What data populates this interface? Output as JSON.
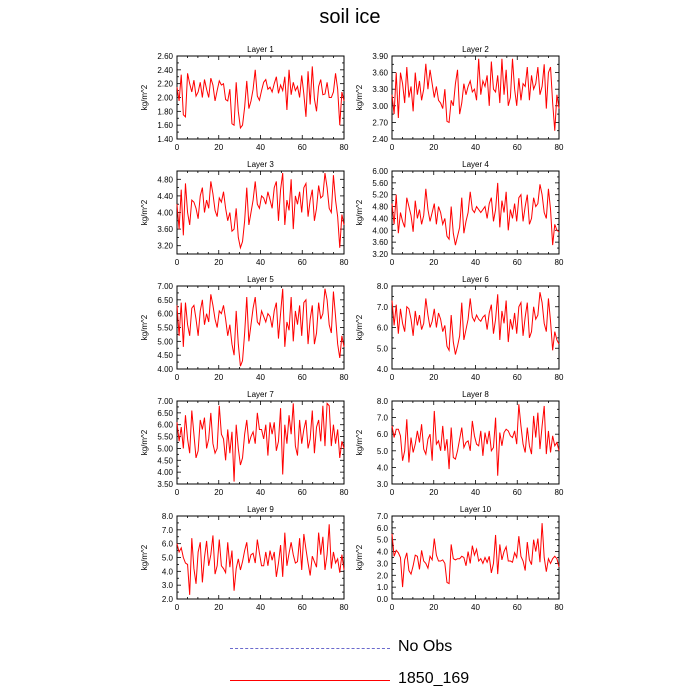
{
  "title": "soil ice",
  "legend": [
    {
      "label": "No Obs",
      "style": "dashed",
      "color": "#6a6acd"
    },
    {
      "label": "1850_169",
      "style": "solid",
      "color": "#ff0000"
    }
  ],
  "series_color": "#ff0000",
  "chart_data": [
    {
      "type": "line",
      "title": "Layer 1",
      "ylabel": "kg/m^2",
      "xlim": [
        0,
        80
      ],
      "xticks": [
        0,
        20,
        40,
        60,
        80
      ],
      "ylim": [
        1.4,
        2.6
      ],
      "yticks": [
        "1.40",
        "1.60",
        "1.80",
        "2.00",
        "2.20",
        "2.40",
        "2.60"
      ],
      "values": [
        2.15,
        1.95,
        2.33,
        1.75,
        1.72,
        2.35,
        2.2,
        2.08,
        2.25,
        2.02,
        2.08,
        2.22,
        2.0,
        2.26,
        2.12,
        2.0,
        2.28,
        2.18,
        1.95,
        2.1,
        2.24,
        2.18,
        2.2,
        1.97,
        1.95,
        2.12,
        1.62,
        1.6,
        2.22,
        1.8,
        1.56,
        1.6,
        1.86,
        2.24,
        1.84,
        1.95,
        2.12,
        2.4,
        2.02,
        1.96,
        2.1,
        2.22,
        2.26,
        2.12,
        2.15,
        2.08,
        2.2,
        2.3,
        2.06,
        2.18,
        2.1,
        2.3,
        1.82,
        2.4,
        2.04,
        2.22,
        2.1,
        2.16,
        2.0,
        2.32,
        2.05,
        1.72,
        2.38,
        1.9,
        2.45,
        1.98,
        1.8,
        2.16,
        2.26,
        2.04,
        2.05,
        2.22,
        2.0,
        2.0,
        2.08,
        2.35,
        2.12,
        1.6,
        2.08,
        1.95
      ]
    },
    {
      "type": "line",
      "title": "Layer 2",
      "ylabel": "kg/m^2",
      "xlim": [
        0,
        80
      ],
      "xticks": [
        0,
        20,
        40,
        60,
        80
      ],
      "ylim": [
        2.4,
        3.9
      ],
      "yticks": [
        "2.40",
        "2.70",
        "3.00",
        "3.30",
        "3.60",
        "3.90"
      ],
      "values": [
        3.2,
        2.85,
        3.6,
        2.78,
        3.6,
        3.4,
        3.05,
        3.7,
        3.15,
        3.35,
        2.9,
        3.6,
        3.2,
        3.45,
        3.1,
        3.3,
        3.76,
        3.3,
        3.65,
        3.4,
        3.15,
        3.35,
        3.1,
        3.05,
        2.95,
        3.3,
        2.72,
        2.7,
        3.1,
        3.0,
        3.4,
        3.65,
        2.85,
        3.05,
        3.4,
        3.2,
        3.35,
        3.45,
        3.25,
        3.3,
        3.1,
        3.85,
        3.2,
        3.45,
        3.35,
        3.55,
        3.0,
        3.8,
        3.3,
        3.25,
        3.55,
        3.05,
        3.85,
        3.2,
        3.65,
        3.0,
        3.15,
        3.85,
        3.3,
        3.0,
        3.5,
        3.1,
        3.4,
        3.35,
        3.7,
        3.1,
        3.55,
        3.3,
        3.4,
        3.7,
        3.2,
        3.35,
        3.75,
        2.95,
        3.6,
        3.7,
        3.05,
        2.55,
        3.2,
        2.95
      ]
    },
    {
      "type": "line",
      "title": "Layer 3",
      "ylabel": "kg/m^2",
      "xlim": [
        0,
        80
      ],
      "xticks": [
        0,
        20,
        40,
        60,
        80
      ],
      "ylim": [
        3.0,
        5.0
      ],
      "yticks": [
        "3.20",
        "3.60",
        "4.00",
        "4.40",
        "4.80"
      ],
      "values": [
        4.2,
        3.6,
        4.55,
        3.45,
        4.7,
        4.0,
        3.7,
        4.3,
        4.25,
        4.1,
        3.85,
        4.4,
        4.6,
        4.0,
        4.3,
        4.1,
        4.75,
        4.45,
        4.05,
        3.9,
        4.35,
        4.25,
        4.5,
        4.1,
        3.8,
        4.0,
        3.55,
        3.6,
        4.1,
        3.4,
        3.15,
        3.3,
        3.8,
        4.6,
        3.7,
        4.0,
        4.3,
        4.75,
        4.2,
        4.1,
        4.4,
        4.35,
        4.2,
        4.5,
        4.3,
        4.1,
        4.6,
        4.75,
        3.8,
        4.55,
        4.95,
        3.7,
        4.3,
        4.05,
        4.8,
        3.6,
        4.4,
        4.2,
        4.5,
        4.0,
        4.6,
        4.7,
        3.9,
        4.3,
        4.55,
        3.8,
        4.1,
        4.65,
        4.35,
        4.4,
        4.95,
        4.6,
        4.1,
        4.0,
        4.9,
        4.3,
        3.9,
        3.15,
        3.95,
        3.7
      ]
    },
    {
      "type": "line",
      "title": "Layer 4",
      "ylabel": "kg/m^2",
      "xlim": [
        0,
        80
      ],
      "xticks": [
        0,
        20,
        40,
        60,
        80
      ],
      "ylim": [
        3.2,
        6.0
      ],
      "yticks": [
        "3.20",
        "3.60",
        "4.00",
        "4.40",
        "4.80",
        "5.20",
        "5.60",
        "6.00"
      ],
      "values": [
        4.9,
        4.2,
        5.2,
        3.9,
        4.6,
        4.3,
        4.1,
        5.1,
        4.8,
        4.5,
        3.95,
        5.0,
        4.4,
        4.7,
        4.2,
        4.5,
        5.4,
        4.7,
        4.3,
        4.6,
        4.9,
        4.2,
        4.8,
        4.6,
        4.2,
        4.4,
        3.8,
        3.7,
        4.8,
        3.9,
        3.5,
        3.8,
        4.1,
        5.1,
        3.9,
        4.3,
        4.6,
        5.3,
        4.7,
        4.6,
        4.8,
        4.7,
        4.6,
        4.7,
        4.8,
        4.4,
        4.9,
        5.1,
        4.3,
        4.7,
        5.6,
        4.1,
        5.0,
        4.6,
        5.3,
        4.0,
        4.7,
        4.4,
        4.9,
        4.3,
        5.1,
        5.2,
        4.3,
        4.8,
        5.2,
        4.2,
        4.4,
        5.1,
        4.8,
        4.9,
        5.55,
        5.2,
        4.6,
        4.4,
        5.4,
        4.7,
        3.5,
        4.2,
        4.0,
        3.95
      ]
    },
    {
      "type": "line",
      "title": "Layer 5",
      "ylabel": "kg/m^2",
      "xlim": [
        0,
        80
      ],
      "xticks": [
        0,
        20,
        40,
        60,
        80
      ],
      "ylim": [
        4.0,
        7.0
      ],
      "yticks": [
        "4.00",
        "4.50",
        "5.00",
        "5.50",
        "6.00",
        "6.50",
        "7.00"
      ],
      "values": [
        6.3,
        5.2,
        6.4,
        4.8,
        6.4,
        5.6,
        5.2,
        6.2,
        6.3,
        5.8,
        5.2,
        6.1,
        6.5,
        5.6,
        6.0,
        5.7,
        6.7,
        6.3,
        5.8,
        5.5,
        6.1,
        6.0,
        6.3,
        5.8,
        5.2,
        5.6,
        4.9,
        4.5,
        6.1,
        4.9,
        4.1,
        4.3,
        5.3,
        6.6,
        5.0,
        5.6,
        6.2,
        6.6,
        5.7,
        5.6,
        6.1,
        5.9,
        5.7,
        6.0,
        5.9,
        5.5,
        6.1,
        6.4,
        5.1,
        6.0,
        6.9,
        4.8,
        5.7,
        5.4,
        6.6,
        5.0,
        6.1,
        5.6,
        6.3,
        5.2,
        6.4,
        6.5,
        4.9,
        5.8,
        6.3,
        4.9,
        5.3,
        6.4,
        5.8,
        6.0,
        6.9,
        6.5,
        5.6,
        5.3,
        6.8,
        5.9,
        4.9,
        4.4,
        5.2,
        4.8
      ]
    },
    {
      "type": "line",
      "title": "Layer 6",
      "ylabel": "kg/m^2",
      "xlim": [
        0,
        80
      ],
      "xticks": [
        0,
        20,
        40,
        60,
        80
      ],
      "ylim": [
        4.0,
        8.0
      ],
      "yticks": [
        "4.0",
        "5.0",
        "6.0",
        "7.0",
        "8.0"
      ],
      "values": [
        7.3,
        6.1,
        7.1,
        5.7,
        6.9,
        6.2,
        5.8,
        7.0,
        6.9,
        6.4,
        5.6,
        6.8,
        6.1,
        6.6,
        5.9,
        6.2,
        7.4,
        6.6,
        6.0,
        6.3,
        6.9,
        6.0,
        6.7,
        6.4,
        5.8,
        6.1,
        5.1,
        4.9,
        6.6,
        5.3,
        4.7,
        5.1,
        5.6,
        7.2,
        5.4,
        5.9,
        6.4,
        7.4,
        6.5,
        6.3,
        6.6,
        6.4,
        6.3,
        6.5,
        6.6,
        5.9,
        6.7,
        7.1,
        5.7,
        6.4,
        7.6,
        5.4,
        6.8,
        6.2,
        7.3,
        5.3,
        6.4,
        5.9,
        6.7,
        5.7,
        7.0,
        7.2,
        5.6,
        6.5,
        7.2,
        5.5,
        5.8,
        7.0,
        6.4,
        6.6,
        7.7,
        7.2,
        6.2,
        5.8,
        7.4,
        6.3,
        4.9,
        5.8,
        5.4,
        5.2
      ]
    },
    {
      "type": "line",
      "title": "Layer 7",
      "ylabel": "kg/m^2",
      "xlim": [
        0,
        80
      ],
      "xticks": [
        0,
        20,
        40,
        60,
        80
      ],
      "ylim": [
        3.5,
        7.0
      ],
      "yticks": [
        "3.50",
        "4.00",
        "4.50",
        "5.00",
        "5.50",
        "6.00",
        "6.50",
        "7.00"
      ],
      "values": [
        6.1,
        5.3,
        5.9,
        5.0,
        6.4,
        5.4,
        4.8,
        6.6,
        5.6,
        4.6,
        4.9,
        6.2,
        5.8,
        6.3,
        5.0,
        5.4,
        6.5,
        5.2,
        4.8,
        5.0,
        6.8,
        5.6,
        5.4,
        4.5,
        5.8,
        4.8,
        5.7,
        3.6,
        6.0,
        5.0,
        4.3,
        4.6,
        5.6,
        6.2,
        5.2,
        5.5,
        5.7,
        5.2,
        6.5,
        5.8,
        5.8,
        5.4,
        6.0,
        4.7,
        6.1,
        5.6,
        6.1,
        4.9,
        5.3,
        6.7,
        3.9,
        6.0,
        5.2,
        6.4,
        5.6,
        6.9,
        5.1,
        4.7,
        6.2,
        5.2,
        5.8,
        6.2,
        5.0,
        5.4,
        6.6,
        4.8,
        5.9,
        6.2,
        5.3,
        6.8,
        5.1,
        6.9,
        6.8,
        5.1,
        6.0,
        5.2,
        5.8,
        4.6,
        5.3,
        5.0
      ]
    },
    {
      "type": "line",
      "title": "Layer 8",
      "ylabel": "kg/m^2",
      "xlim": [
        0,
        80
      ],
      "xticks": [
        0,
        20,
        40,
        60,
        80
      ],
      "ylim": [
        3.0,
        8.0
      ],
      "yticks": [
        "3.0",
        "4.0",
        "5.0",
        "6.0",
        "7.0",
        "8.0"
      ],
      "values": [
        6.5,
        5.8,
        6.3,
        6.3,
        5.9,
        4.4,
        5.0,
        6.9,
        4.3,
        5.8,
        4.9,
        5.4,
        6.2,
        5.5,
        6.6,
        5.1,
        4.8,
        5.7,
        6.0,
        4.4,
        7.4,
        5.4,
        5.6,
        5.0,
        6.5,
        5.0,
        5.7,
        3.9,
        6.4,
        4.6,
        4.5,
        5.0,
        5.7,
        6.4,
        5.2,
        5.5,
        5.6,
        5.0,
        6.8,
        5.9,
        5.4,
        5.3,
        6.2,
        4.7,
        6.1,
        5.4,
        6.2,
        5.0,
        5.2,
        7.0,
        3.5,
        6.1,
        5.3,
        6.1,
        6.3,
        6.2,
        5.9,
        5.8,
        6.2,
        5.4,
        7.8,
        6.5,
        5.4,
        4.9,
        6.4,
        5.3,
        4.8,
        7.1,
        5.8,
        7.3,
        5.1,
        6.5,
        7.7,
        4.8,
        6.2,
        4.9,
        5.9,
        5.3,
        5.5,
        5.0
      ]
    },
    {
      "type": "line",
      "title": "Layer 9",
      "ylabel": "kg/m^2",
      "xlim": [
        0,
        80
      ],
      "xticks": [
        0,
        20,
        40,
        60,
        80
      ],
      "ylim": [
        2.0,
        8.0
      ],
      "yticks": [
        "2.0",
        "3.0",
        "4.0",
        "5.0",
        "6.0",
        "7.0",
        "8.0"
      ],
      "values": [
        6.0,
        5.4,
        5.7,
        5.0,
        4.6,
        4.5,
        2.3,
        6.4,
        4.2,
        3.1,
        5.4,
        6.1,
        3.2,
        5.0,
        6.2,
        4.4,
        5.2,
        6.6,
        3.8,
        4.4,
        6.3,
        4.4,
        4.2,
        3.9,
        6.1,
        4.3,
        5.5,
        2.6,
        4.2,
        4.9,
        4.1,
        4.7,
        5.5,
        6.1,
        4.6,
        5.2,
        5.3,
        4.6,
        6.3,
        5.3,
        4.4,
        4.4,
        5.4,
        4.4,
        5.5,
        4.8,
        5.4,
        3.6,
        4.6,
        5.9,
        3.6,
        6.8,
        4.4,
        5.3,
        6.1,
        5.2,
        4.6,
        4.7,
        6.4,
        4.1,
        6.7,
        5.6,
        4.6,
        3.7,
        5.1,
        4.7,
        4.3,
        6.8,
        5.2,
        6.5,
        4.1,
        5.2,
        7.4,
        4.2,
        5.4,
        4.6,
        4.9,
        3.9,
        5.2,
        4.1
      ]
    },
    {
      "type": "line",
      "title": "Layer 10",
      "ylabel": "kg/m^2",
      "xlim": [
        0,
        80
      ],
      "xticks": [
        0,
        20,
        40,
        60,
        80
      ],
      "ylim": [
        0.0,
        7.0
      ],
      "yticks": [
        "0.0",
        "1.0",
        "2.0",
        "3.0",
        "4.0",
        "5.0",
        "6.0",
        "7.0"
      ],
      "values": [
        5.5,
        3.6,
        4.1,
        3.9,
        3.5,
        1.0,
        3.3,
        3.9,
        2.4,
        2.1,
        2.8,
        3.7,
        3.6,
        2.5,
        4.1,
        3.2,
        3.0,
        2.6,
        3.6,
        3.3,
        5.1,
        3.7,
        3.2,
        3.2,
        3.3,
        3.0,
        1.4,
        1.3,
        4.6,
        3.4,
        3.3,
        3.4,
        3.4,
        3.6,
        3.5,
        2.8,
        4.0,
        3.0,
        4.5,
        3.7,
        4.2,
        3.2,
        3.4,
        3.0,
        3.5,
        3.1,
        3.6,
        2.2,
        3.0,
        5.4,
        2.1,
        4.6,
        3.3,
        4.0,
        4.4,
        3.2,
        3.2,
        3.1,
        3.9,
        3.5,
        5.3,
        3.6,
        3.2,
        2.4,
        4.8,
        3.3,
        2.9,
        5.0,
        4.0,
        5.1,
        3.1,
        6.4,
        3.5,
        2.3,
        3.4,
        3.0,
        3.4,
        3.6,
        3.4,
        2.7
      ]
    }
  ]
}
